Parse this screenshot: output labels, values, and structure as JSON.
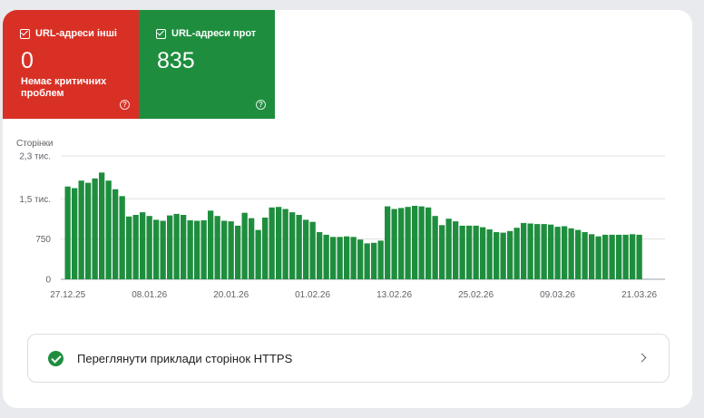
{
  "tiles": [
    {
      "label": "URL-адреси інші",
      "value": "0",
      "description": "Немає критичних проблем",
      "color": "#d93025"
    },
    {
      "label": "URL-адреси прот",
      "value": "835",
      "description": "",
      "color": "#1e8e3e"
    }
  ],
  "chart_data": {
    "type": "bar",
    "ylabel": "Сторінки",
    "yticks": [
      "2,3 тис.",
      "1,5 тис.",
      "750",
      "0"
    ],
    "ytick_values": [
      2300,
      1500,
      750,
      0
    ],
    "ylim": [
      0,
      2300
    ],
    "grid": true,
    "bar_color": "#1e8e3e",
    "x_tick_labels": [
      "27.12.25",
      "08.01.26",
      "20.01.26",
      "01.02.26",
      "13.02.26",
      "25.02.26",
      "09.03.26",
      "21.03.26"
    ],
    "x_tick_index": [
      0,
      12,
      24,
      36,
      48,
      60,
      72,
      84
    ],
    "values": [
      1730,
      1700,
      1840,
      1800,
      1880,
      1990,
      1840,
      1680,
      1550,
      1170,
      1200,
      1250,
      1180,
      1110,
      1090,
      1190,
      1220,
      1200,
      1100,
      1090,
      1100,
      1280,
      1180,
      1090,
      1080,
      1000,
      1240,
      1140,
      920,
      1150,
      1340,
      1350,
      1310,
      1250,
      1200,
      1110,
      1070,
      880,
      830,
      790,
      790,
      800,
      790,
      740,
      670,
      680,
      720,
      1360,
      1310,
      1330,
      1350,
      1370,
      1360,
      1340,
      1180,
      1010,
      1130,
      1080,
      1000,
      1000,
      1000,
      970,
      930,
      880,
      870,
      900,
      960,
      1050,
      1040,
      1030,
      1030,
      1020,
      980,
      990,
      950,
      920,
      880,
      840,
      800,
      830,
      830,
      830,
      830,
      840,
      830
    ]
  },
  "link": {
    "label": "Переглянути приклади сторінок HTTPS"
  }
}
